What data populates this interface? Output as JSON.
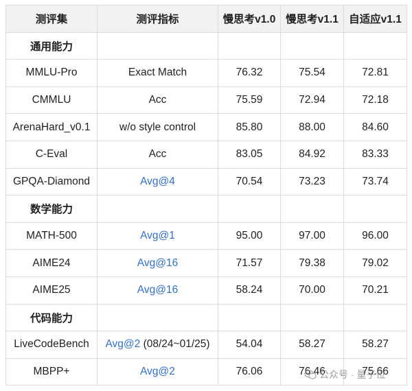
{
  "table": {
    "headers": [
      "测评集",
      "测评指标",
      "慢思考v1.0",
      "慢思考v1.1",
      "自适应v1.1"
    ],
    "sections": [
      {
        "title": "通用能力",
        "rows": [
          {
            "dataset": "MMLU-Pro",
            "metric": "Exact Match",
            "metric_suffix": "",
            "metric_link": false,
            "v10": "76.32",
            "v11": "75.54",
            "adaptive": "72.81"
          },
          {
            "dataset": "CMMLU",
            "metric": "Acc",
            "metric_suffix": "",
            "metric_link": false,
            "v10": "75.59",
            "v11": "72.94",
            "adaptive": "72.18"
          },
          {
            "dataset": "ArenaHard_v0.1",
            "metric": "w/o style control",
            "metric_suffix": "",
            "metric_link": false,
            "v10": "85.80",
            "v11": "88.00",
            "adaptive": "84.60"
          },
          {
            "dataset": "C-Eval",
            "metric": "Acc",
            "metric_suffix": "",
            "metric_link": false,
            "v10": "83.05",
            "v11": "84.92",
            "adaptive": "83.33"
          },
          {
            "dataset": "GPQA-Diamond",
            "metric": "Avg@4",
            "metric_suffix": "",
            "metric_link": true,
            "v10": "70.54",
            "v11": "73.23",
            "adaptive": "73.74"
          }
        ]
      },
      {
        "title": "数学能力",
        "rows": [
          {
            "dataset": "MATH-500",
            "metric": "Avg@1",
            "metric_suffix": "",
            "metric_link": true,
            "v10": "95.00",
            "v11": "97.00",
            "adaptive": "96.00"
          },
          {
            "dataset": "AIME24",
            "metric": "Avg@16",
            "metric_suffix": "",
            "metric_link": true,
            "v10": "71.57",
            "v11": "79.38",
            "adaptive": "79.02"
          },
          {
            "dataset": "AIME25",
            "metric": "Avg@16",
            "metric_suffix": "",
            "metric_link": true,
            "v10": "58.24",
            "v11": "70.00",
            "adaptive": "70.21"
          }
        ]
      },
      {
        "title": "代码能力",
        "rows": [
          {
            "dataset": "LiveCodeBench",
            "metric": "Avg@2",
            "metric_suffix": " (08/24~01/25)",
            "metric_link": true,
            "v10": "54.04",
            "v11": "58.27",
            "adaptive": "58.27"
          },
          {
            "dataset": "MBPP+",
            "metric": "Avg@2",
            "metric_suffix": "",
            "metric_link": true,
            "v10": "76.06",
            "v11": "76.46",
            "adaptive": "75.66"
          }
        ]
      }
    ]
  },
  "watermark": {
    "icon": "wechat-official-account-icon",
    "text": "公众号 · 量子位"
  },
  "colors": {
    "link_blue": "#2f6fd6",
    "header_bg": "#f2f2f2",
    "border": "#dcdcdc"
  }
}
